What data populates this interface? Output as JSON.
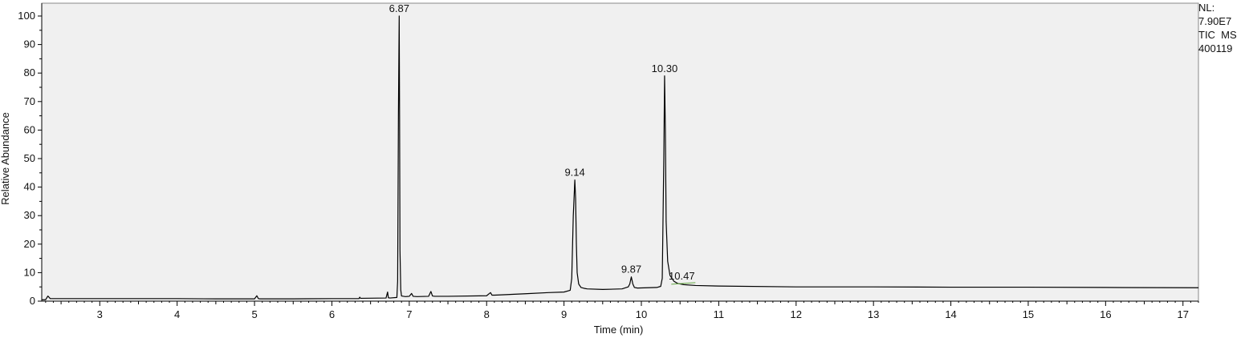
{
  "chart_data": {
    "type": "line",
    "xlabel": "Time (min)",
    "ylabel": "Relative Abundance",
    "xlim": [
      2.25,
      17.2
    ],
    "ylim": [
      0,
      100
    ],
    "x_ticks": [
      3,
      4,
      5,
      6,
      7,
      8,
      9,
      10,
      11,
      12,
      13,
      14,
      15,
      16,
      17
    ],
    "y_ticks": [
      0,
      10,
      20,
      30,
      40,
      50,
      60,
      70,
      80,
      90,
      100
    ],
    "info_lines": [
      "NL:",
      "7.90E7",
      "TIC  MS",
      "400119"
    ],
    "colors": {
      "background": "#f0f0f0",
      "trace": "#000000",
      "frame": "#888888",
      "annotation_tick": "#66aa44"
    },
    "series": [
      {
        "x": [
          2.25,
          2.3,
          2.33,
          2.36,
          2.5,
          3.0,
          3.5,
          4.0,
          4.5,
          5.0,
          5.03,
          5.05,
          5.07,
          5.1,
          5.5,
          6.0,
          6.35,
          6.36,
          6.37,
          6.7,
          6.72,
          6.73,
          6.75,
          6.84,
          6.85,
          6.86,
          6.87,
          6.875,
          6.88,
          6.89,
          6.9,
          6.95,
          7.0,
          7.03,
          7.05,
          7.1,
          7.25,
          7.28,
          7.3,
          7.33,
          7.5,
          8.0,
          8.05,
          8.07,
          8.1,
          8.5,
          8.8,
          9.0,
          9.08,
          9.1,
          9.12,
          9.14,
          9.15,
          9.16,
          9.17,
          9.19,
          9.22,
          9.26,
          9.3,
          9.5,
          9.75,
          9.83,
          9.85,
          9.87,
          9.89,
          9.91,
          9.95,
          10.2,
          10.25,
          10.27,
          10.29,
          10.3,
          10.31,
          10.32,
          10.34,
          10.37,
          10.42,
          10.47,
          10.55,
          10.7,
          11.0,
          12.0,
          13.0,
          14.0,
          15.0,
          16.0,
          17.2
        ],
        "y": [
          0.5,
          0.5,
          1.8,
          0.9,
          0.9,
          0.9,
          0.9,
          0.9,
          0.8,
          0.8,
          1.9,
          0.9,
          0.8,
          0.8,
          0.8,
          0.9,
          0.9,
          1.4,
          1.0,
          1.1,
          3.2,
          1.2,
          1.1,
          1.3,
          7.0,
          65.0,
          100.0,
          65.0,
          18.0,
          4.0,
          1.8,
          1.6,
          1.7,
          2.7,
          1.7,
          1.6,
          1.7,
          3.4,
          1.8,
          1.7,
          1.7,
          1.9,
          3.0,
          2.1,
          2.1,
          2.6,
          3.0,
          3.2,
          3.8,
          8.0,
          30.0,
          42.5,
          36.0,
          20.0,
          10.0,
          6.0,
          4.8,
          4.5,
          4.3,
          4.1,
          4.3,
          5.0,
          6.0,
          8.5,
          6.0,
          4.8,
          4.6,
          4.8,
          5.2,
          8.0,
          50.0,
          79.0,
          60.0,
          28.0,
          14.0,
          9.0,
          7.0,
          6.2,
          5.8,
          5.5,
          5.3,
          5.0,
          5.0,
          4.9,
          4.9,
          4.8,
          4.7
        ]
      }
    ],
    "peak_labels": [
      {
        "x": 6.87,
        "y": 100,
        "text": "6.87"
      },
      {
        "x": 9.14,
        "y": 42.5,
        "text": "9.14"
      },
      {
        "x": 9.87,
        "y": 8.5,
        "text": "9.87"
      },
      {
        "x": 10.3,
        "y": 79,
        "text": "10.30"
      },
      {
        "x": 10.47,
        "y": 6.2,
        "text": "10.47"
      }
    ]
  }
}
